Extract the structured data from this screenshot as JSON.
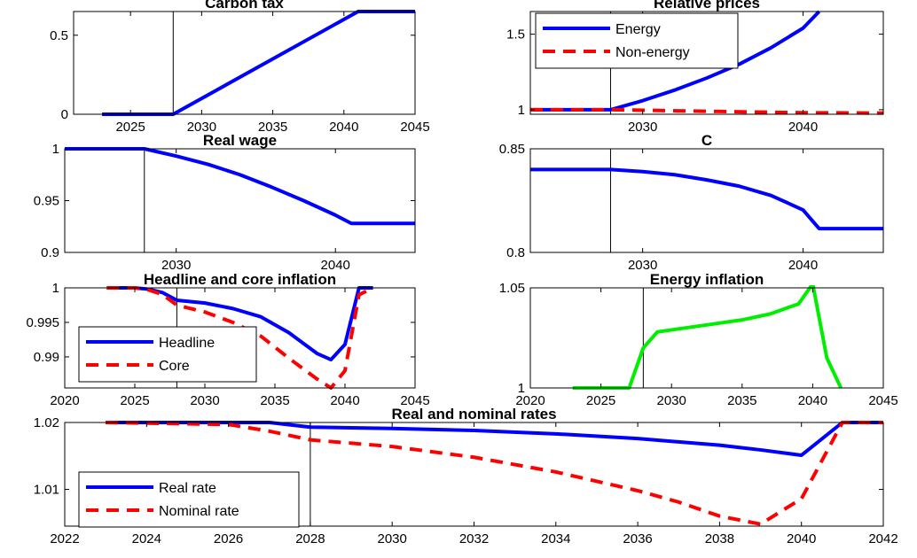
{
  "chart_data": [
    {
      "id": "carbon_tax",
      "type": "line",
      "title": "Carbon tax",
      "xlim": [
        2021,
        2045
      ],
      "ylim": [
        0,
        0.65
      ],
      "xticks": [
        2025,
        2030,
        2035,
        2040,
        2045
      ],
      "xtick_labels": [
        "2025",
        "2030",
        "2035",
        "2040",
        "2045"
      ],
      "yticks": [
        0,
        0.5
      ],
      "ytick_labels": [
        "0",
        "0.5"
      ],
      "vline": 2028,
      "series": [
        {
          "color": "#0000ff",
          "dash": "solid",
          "x": [
            2023,
            2028,
            2041,
            2045
          ],
          "y": [
            0,
            0,
            0.65,
            0.65
          ]
        }
      ]
    },
    {
      "id": "relative_prices",
      "type": "line",
      "title": "Relative prices",
      "xlim": [
        2023,
        2045
      ],
      "ylim": [
        0.97,
        1.65
      ],
      "xticks": [
        2030,
        2040
      ],
      "xtick_labels": [
        "2030",
        "2040"
      ],
      "yticks": [
        1,
        1.5
      ],
      "ytick_labels": [
        "1",
        "1.5"
      ],
      "vline": 2028,
      "legend": "top-left",
      "series": [
        {
          "name": "Energy",
          "color": "#0000ff",
          "dash": "solid",
          "x": [
            2023,
            2028,
            2030,
            2032,
            2034,
            2036,
            2038,
            2040,
            2041
          ],
          "y": [
            1.0,
            1.0,
            1.06,
            1.13,
            1.21,
            1.3,
            1.41,
            1.54,
            1.65
          ]
        },
        {
          "name": "Non-energy",
          "color": "#ff0000",
          "dash": "dashed",
          "x": [
            2023,
            2028,
            2035,
            2040,
            2045
          ],
          "y": [
            1.0,
            1.0,
            0.988,
            0.98,
            0.978
          ]
        }
      ]
    },
    {
      "id": "real_wage",
      "type": "line",
      "title": "Real wage",
      "xlim": [
        2023,
        2045
      ],
      "ylim": [
        0.9,
        1.0
      ],
      "xticks": [
        2030,
        2040
      ],
      "xtick_labels": [
        "2030",
        "2040"
      ],
      "yticks": [
        0.9,
        0.95,
        1.0
      ],
      "ytick_labels": [
        "0.9",
        "0.95",
        "1"
      ],
      "vline": 2028,
      "series": [
        {
          "color": "#0000ff",
          "dash": "solid",
          "x": [
            2023,
            2028,
            2030,
            2032,
            2034,
            2036,
            2038,
            2040,
            2041,
            2045
          ],
          "y": [
            1.0,
            1.0,
            0.993,
            0.985,
            0.975,
            0.963,
            0.95,
            0.936,
            0.928,
            0.928
          ]
        }
      ]
    },
    {
      "id": "consumption",
      "type": "line",
      "title": "C",
      "xlim": [
        2023,
        2045
      ],
      "ylim": [
        0.8,
        0.85
      ],
      "xticks": [
        2030,
        2040
      ],
      "xtick_labels": [
        "2030",
        "2040"
      ],
      "yticks": [
        0.8,
        0.85
      ],
      "ytick_labels": [
        "0.8",
        "0.85"
      ],
      "vline": 2028,
      "series": [
        {
          "color": "#0000ff",
          "dash": "solid",
          "x": [
            2023,
            2028,
            2030,
            2032,
            2034,
            2036,
            2038,
            2040,
            2041,
            2045
          ],
          "y": [
            0.84,
            0.84,
            0.839,
            0.8375,
            0.835,
            0.832,
            0.8275,
            0.8205,
            0.8115,
            0.8115
          ]
        }
      ]
    },
    {
      "id": "headline_core_inflation",
      "type": "line",
      "title": "Headline and core inflation",
      "xlim": [
        2020,
        2045
      ],
      "ylim": [
        0.9855,
        1.0
      ],
      "xticks": [
        2020,
        2025,
        2030,
        2035,
        2040,
        2045
      ],
      "xtick_labels": [
        "2020",
        "2025",
        "2030",
        "2035",
        "2040",
        "2045"
      ],
      "yticks": [
        0.99,
        0.995,
        1.0
      ],
      "ytick_labels": [
        "0.99",
        "0.995",
        "1"
      ],
      "vline": 2028,
      "legend": "bottom-left",
      "series": [
        {
          "name": "Headline",
          "color": "#0000ff",
          "dash": "solid",
          "x": [
            2023,
            2025,
            2026,
            2027,
            2028,
            2030,
            2032,
            2034,
            2036,
            2038,
            2039,
            2040,
            2041,
            2042
          ],
          "y": [
            1.0,
            1.0,
            0.9998,
            0.9993,
            0.9982,
            0.9978,
            0.997,
            0.9958,
            0.9935,
            0.9905,
            0.9896,
            0.9918,
            1.0,
            1.0
          ]
        },
        {
          "name": "Core",
          "color": "#ff0000",
          "dash": "dashed",
          "x": [
            2023,
            2025,
            2026,
            2027,
            2028,
            2030,
            2032,
            2034,
            2036,
            2038,
            2039,
            2040,
            2041,
            2042
          ],
          "y": [
            1.0,
            1.0,
            0.9997,
            0.999,
            0.9975,
            0.9965,
            0.995,
            0.993,
            0.9898,
            0.9868,
            0.9855,
            0.988,
            0.999,
            1.0
          ]
        }
      ]
    },
    {
      "id": "energy_inflation",
      "type": "line",
      "title": "Energy inflation",
      "xlim": [
        2020,
        2045
      ],
      "ylim": [
        1.0,
        1.05
      ],
      "xticks": [
        2020,
        2025,
        2030,
        2035,
        2040,
        2045
      ],
      "xtick_labels": [
        "2020",
        "2025",
        "2030",
        "2035",
        "2040",
        "2045"
      ],
      "yticks": [
        1.0,
        1.05
      ],
      "ytick_labels": [
        "1",
        "1.05"
      ],
      "vline": 2028,
      "series": [
        {
          "color": "#00ee00",
          "dash": "solid",
          "x": [
            2023,
            2027,
            2028,
            2029,
            2031,
            2033,
            2035,
            2037,
            2039,
            2040,
            2041,
            2042
          ],
          "y": [
            1.0,
            1.0,
            1.02,
            1.028,
            1.03,
            1.032,
            1.034,
            1.037,
            1.042,
            1.052,
            1.015,
            1.0
          ]
        }
      ]
    },
    {
      "id": "real_nominal_rates",
      "type": "line",
      "title": "Real and nominal rates",
      "xlim": [
        2022,
        2042
      ],
      "ylim": [
        1.0045,
        1.02
      ],
      "xticks": [
        2022,
        2024,
        2026,
        2028,
        2030,
        2032,
        2034,
        2036,
        2038,
        2040,
        2042
      ],
      "xtick_labels": [
        "2022",
        "2024",
        "2026",
        "2028",
        "2030",
        "2032",
        "2034",
        "2036",
        "2038",
        "2040",
        "2042"
      ],
      "yticks": [
        1.01,
        1.02
      ],
      "ytick_labels": [
        "1.01",
        "1.02"
      ],
      "vline": 2028,
      "legend": "bottom-left",
      "series": [
        {
          "name": "Real rate",
          "color": "#0000ff",
          "dash": "solid",
          "x": [
            2023,
            2027,
            2028,
            2030,
            2032,
            2034,
            2036,
            2038,
            2039,
            2040,
            2041,
            2042
          ],
          "y": [
            1.02,
            1.02,
            1.0193,
            1.0191,
            1.0188,
            1.0183,
            1.0176,
            1.0166,
            1.0159,
            1.0151,
            1.02,
            1.02
          ]
        },
        {
          "name": "Nominal rate",
          "color": "#ff0000",
          "dash": "dashed",
          "x": [
            2023,
            2026,
            2027,
            2028,
            2030,
            2032,
            2034,
            2036,
            2037,
            2038,
            2039,
            2040,
            2041,
            2042
          ],
          "y": [
            1.02,
            1.0197,
            1.0187,
            1.0174,
            1.0164,
            1.0148,
            1.0126,
            1.0098,
            1.0081,
            1.006,
            1.0048,
            1.0086,
            1.02,
            1.02
          ]
        }
      ]
    }
  ]
}
